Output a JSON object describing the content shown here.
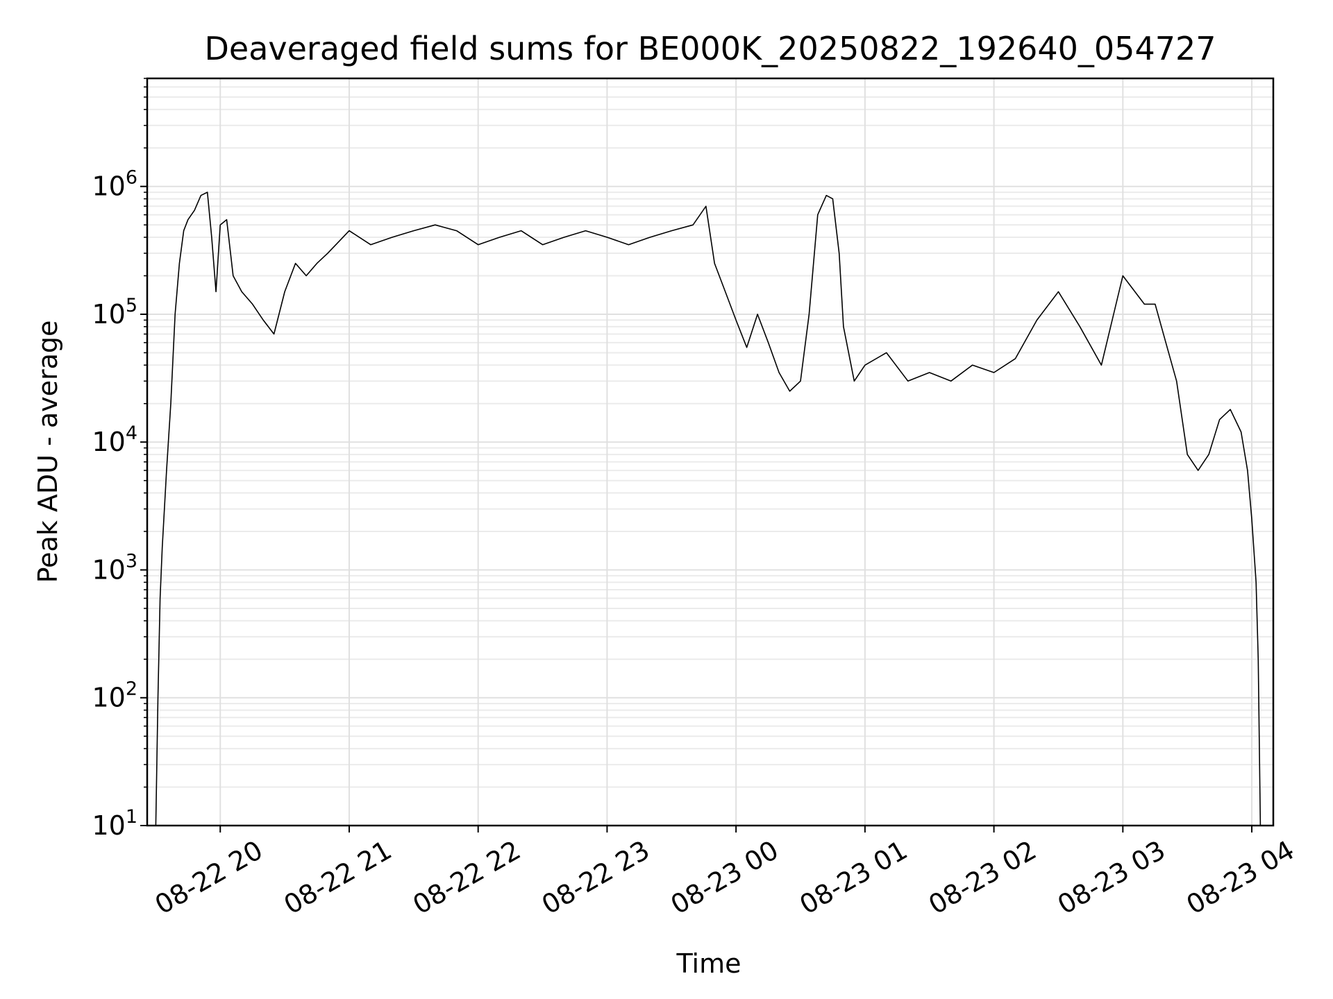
{
  "chart_data": {
    "type": "line",
    "title": "Deaveraged field sums for BE000K_20250822_192640_054727",
    "xlabel": "Time",
    "ylabel": "Peak ADU - average",
    "yscale": "log",
    "ylim": [
      10,
      7000000
    ],
    "xlim": [
      "2025-08-22 19:26",
      "2025-08-23 04:10"
    ],
    "grid": true,
    "line_color": "#000000",
    "x_ticks": [
      {
        "t": "2025-08-22 20:00",
        "label": "08-22 20"
      },
      {
        "t": "2025-08-22 21:00",
        "label": "08-22 21"
      },
      {
        "t": "2025-08-22 22:00",
        "label": "08-22 22"
      },
      {
        "t": "2025-08-22 23:00",
        "label": "08-22 23"
      },
      {
        "t": "2025-08-23 00:00",
        "label": "08-23 00"
      },
      {
        "t": "2025-08-23 01:00",
        "label": "08-23 01"
      },
      {
        "t": "2025-08-23 02:00",
        "label": "08-23 02"
      },
      {
        "t": "2025-08-23 03:00",
        "label": "08-23 03"
      },
      {
        "t": "2025-08-23 04:00",
        "label": "08-23 04"
      }
    ],
    "y_ticks": [
      {
        "value": 10,
        "base": "10",
        "exp": "1"
      },
      {
        "value": 100,
        "base": "10",
        "exp": "2"
      },
      {
        "value": 1000,
        "base": "10",
        "exp": "3"
      },
      {
        "value": 10000,
        "base": "10",
        "exp": "4"
      },
      {
        "value": 100000,
        "base": "10",
        "exp": "5"
      },
      {
        "value": 1000000,
        "base": "10",
        "exp": "6"
      }
    ],
    "series": [
      {
        "x": [
          "2025-08-22 19:30",
          "2025-08-22 19:31",
          "2025-08-22 19:32",
          "2025-08-22 19:33",
          "2025-08-22 19:35",
          "2025-08-22 19:37",
          "2025-08-22 19:39",
          "2025-08-22 19:41",
          "2025-08-22 19:43",
          "2025-08-22 19:45",
          "2025-08-22 19:48",
          "2025-08-22 19:51",
          "2025-08-22 19:54",
          "2025-08-22 19:56",
          "2025-08-22 19:58",
          "2025-08-22 20:00",
          "2025-08-22 20:03",
          "2025-08-22 20:06",
          "2025-08-22 20:10",
          "2025-08-22 20:15",
          "2025-08-22 20:20",
          "2025-08-22 20:25",
          "2025-08-22 20:30",
          "2025-08-22 20:35",
          "2025-08-22 20:40",
          "2025-08-22 20:45",
          "2025-08-22 20:50",
          "2025-08-22 21:00",
          "2025-08-22 21:10",
          "2025-08-22 21:20",
          "2025-08-22 21:30",
          "2025-08-22 21:40",
          "2025-08-22 21:50",
          "2025-08-22 22:00",
          "2025-08-22 22:10",
          "2025-08-22 22:20",
          "2025-08-22 22:30",
          "2025-08-22 22:40",
          "2025-08-22 22:50",
          "2025-08-22 23:00",
          "2025-08-22 23:10",
          "2025-08-22 23:20",
          "2025-08-22 23:30",
          "2025-08-22 23:40",
          "2025-08-22 23:46",
          "2025-08-22 23:50",
          "2025-08-22 23:55",
          "2025-08-23 00:00",
          "2025-08-23 00:05",
          "2025-08-23 00:10",
          "2025-08-23 00:15",
          "2025-08-23 00:20",
          "2025-08-23 00:25",
          "2025-08-23 00:30",
          "2025-08-23 00:34",
          "2025-08-23 00:38",
          "2025-08-23 00:42",
          "2025-08-23 00:45",
          "2025-08-23 00:48",
          "2025-08-23 00:50",
          "2025-08-23 00:55",
          "2025-08-23 01:00",
          "2025-08-23 01:10",
          "2025-08-23 01:20",
          "2025-08-23 01:30",
          "2025-08-23 01:40",
          "2025-08-23 01:50",
          "2025-08-23 02:00",
          "2025-08-23 02:10",
          "2025-08-23 02:20",
          "2025-08-23 02:30",
          "2025-08-23 02:40",
          "2025-08-23 02:50",
          "2025-08-23 03:00",
          "2025-08-23 03:10",
          "2025-08-23 03:15",
          "2025-08-23 03:20",
          "2025-08-23 03:25",
          "2025-08-23 03:30",
          "2025-08-23 03:35",
          "2025-08-23 03:40",
          "2025-08-23 03:45",
          "2025-08-23 03:50",
          "2025-08-23 03:55",
          "2025-08-23 03:58",
          "2025-08-23 04:00",
          "2025-08-23 04:02",
          "2025-08-23 04:03",
          "2025-08-23 04:04"
        ],
        "y": [
          10,
          100,
          600,
          1500,
          6000,
          20000,
          100000,
          250000,
          450000,
          550000,
          650000,
          850000,
          900000,
          400000,
          150000,
          500000,
          550000,
          200000,
          150000,
          120000,
          90000,
          70000,
          150000,
          250000,
          200000,
          250000,
          300000,
          450000,
          350000,
          400000,
          450000,
          500000,
          450000,
          350000,
          400000,
          450000,
          350000,
          400000,
          450000,
          400000,
          350000,
          400000,
          450000,
          500000,
          700000,
          250000,
          150000,
          90000,
          55000,
          100000,
          60000,
          35000,
          25000,
          30000,
          100000,
          600000,
          850000,
          800000,
          300000,
          80000,
          30000,
          40000,
          50000,
          30000,
          35000,
          30000,
          40000,
          35000,
          45000,
          90000,
          150000,
          80000,
          40000,
          200000,
          120000,
          120000,
          60000,
          30000,
          8000,
          6000,
          8000,
          15000,
          18000,
          12000,
          6000,
          2500,
          800,
          200,
          10
        ]
      }
    ]
  }
}
